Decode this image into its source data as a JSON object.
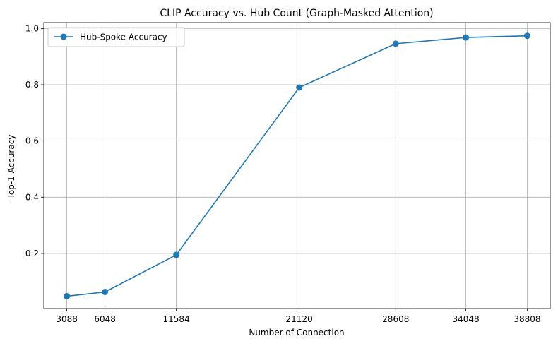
{
  "chart_data": {
    "type": "line",
    "title": "CLIP Accuracy vs. Hub Count (Graph-Masked Attention)",
    "xlabel": "Number of Connection",
    "ylabel": "Top-1 Accuracy",
    "x": [
      3088,
      6048,
      11584,
      21120,
      28608,
      34048,
      38808
    ],
    "x_tick_labels": [
      "3088",
      "6048",
      "11584",
      "21120",
      "28608",
      "34048",
      "38808"
    ],
    "y_ticks": [
      0.2,
      0.4,
      0.6,
      0.8,
      1.0
    ],
    "y_tick_labels": [
      "0.2",
      "0.4",
      "0.6",
      "0.8",
      "1.0"
    ],
    "xlim": [
      1302,
      40594
    ],
    "ylim": [
      0.004,
      1.021
    ],
    "grid": true,
    "legend_position": "top-left",
    "series": [
      {
        "name": "Hub-Spoke Accuracy",
        "color": "#1f77b4",
        "marker": "circle",
        "values": [
          0.048,
          0.063,
          0.195,
          0.79,
          0.946,
          0.968,
          0.974
        ]
      }
    ]
  }
}
